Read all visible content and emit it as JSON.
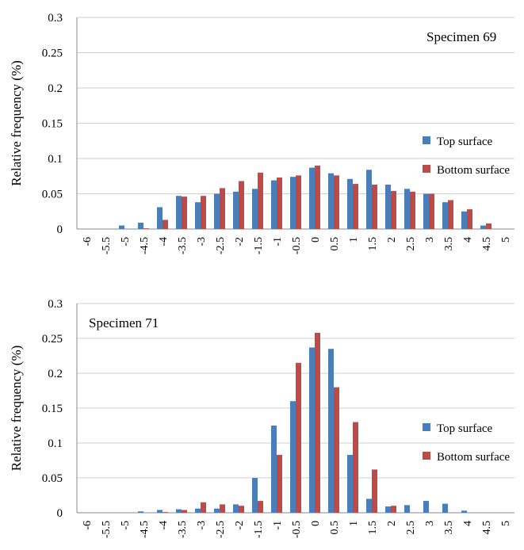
{
  "chart_data": [
    {
      "type": "bar",
      "ylabel": "Relative frequency (%)",
      "annotation": "Specimen 69",
      "ylim": [
        0,
        0.3
      ],
      "yticks": [
        "0",
        "0.05",
        "0.1",
        "0.15",
        "0.2",
        "0.25",
        "0.3"
      ],
      "categories": [
        "-6",
        "-5.5",
        "-5",
        "-4.5",
        "-4",
        "-3.5",
        "-3",
        "-2.5",
        "-2",
        "-1.5",
        "-1",
        "-0.5",
        "0",
        "0.5",
        "1",
        "1.5",
        "2",
        "2.5",
        "3",
        "3.5",
        "4",
        "4.5",
        "5"
      ],
      "series": [
        {
          "name": "Top surface",
          "color": "#4a7ebb",
          "values": [
            0,
            0,
            0.005,
            0.009,
            0.031,
            0.047,
            0.038,
            0.05,
            0.053,
            0.057,
            0.069,
            0.074,
            0.087,
            0.079,
            0.071,
            0.084,
            0.063,
            0.057,
            0.05,
            0.038,
            0.025,
            0.005,
            0
          ]
        },
        {
          "name": "Bottom surface",
          "color": "#be4b48",
          "values": [
            0,
            0,
            0,
            0.001,
            0.013,
            0.046,
            0.047,
            0.058,
            0.068,
            0.08,
            0.073,
            0.076,
            0.09,
            0.076,
            0.064,
            0.063,
            0.054,
            0.053,
            0.05,
            0.041,
            0.028,
            0.008,
            0
          ]
        }
      ],
      "legend": "right"
    },
    {
      "type": "bar",
      "ylabel": "Relative frequency (%)",
      "annotation": "Specimen 71",
      "ylim": [
        0,
        0.3
      ],
      "yticks": [
        "0",
        "0.05",
        "0.1",
        "0.15",
        "0.2",
        "0.25",
        "0.3"
      ],
      "categories": [
        "-6",
        "-5.5",
        "-5",
        "-4.5",
        "-4",
        "-3.5",
        "-3",
        "-2.5",
        "-2",
        "-1.5",
        "-1",
        "-0.5",
        "0",
        "0.5",
        "1",
        "1.5",
        "2",
        "2.5",
        "3",
        "3.5",
        "4",
        "4.5",
        "5"
      ],
      "series": [
        {
          "name": "Top surface",
          "color": "#4a7ebb",
          "values": [
            0,
            0,
            0,
            0.002,
            0.004,
            0.005,
            0.006,
            0.006,
            0.012,
            0.05,
            0.125,
            0.16,
            0.237,
            0.235,
            0.083,
            0.02,
            0.009,
            0.011,
            0.017,
            0.013,
            0.003,
            0,
            0
          ]
        },
        {
          "name": "Bottom surface",
          "color": "#be4b48",
          "values": [
            0,
            0,
            0,
            0,
            0.001,
            0.004,
            0.015,
            0.012,
            0.01,
            0.017,
            0.083,
            0.215,
            0.258,
            0.18,
            0.13,
            0.062,
            0.01,
            0,
            0,
            0,
            0,
            0,
            0
          ]
        }
      ],
      "legend": "right"
    }
  ]
}
